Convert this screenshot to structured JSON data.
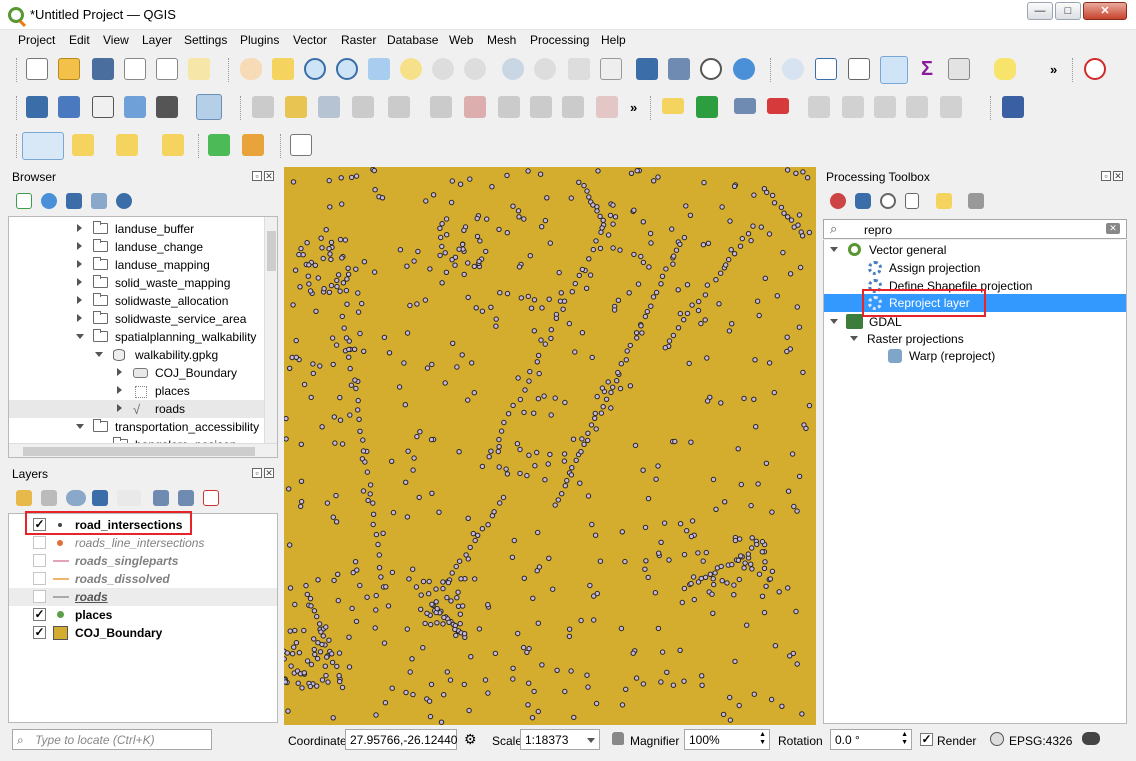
{
  "window": {
    "title": "*Untitled Project — QGIS",
    "btn_min": "—",
    "btn_max": "□",
    "btn_close": "✕"
  },
  "menu": [
    "Project",
    "Edit",
    "View",
    "Layer",
    "Settings",
    "Plugins",
    "Vector",
    "Raster",
    "Database",
    "Web",
    "Mesh",
    "Processing",
    "Help"
  ],
  "toolbar": {
    "more": "»"
  },
  "browser": {
    "title": "Browser",
    "items": [
      {
        "label": "landuse_buffer",
        "level": 1,
        "expanded": false,
        "icon": "folder-icon"
      },
      {
        "label": "landuse_change",
        "level": 1,
        "expanded": false,
        "icon": "folder-icon"
      },
      {
        "label": "landuse_mapping",
        "level": 1,
        "expanded": false,
        "icon": "folder-icon"
      },
      {
        "label": "solid_waste_mapping",
        "level": 1,
        "expanded": false,
        "icon": "folder-icon"
      },
      {
        "label": "solidwaste_allocation",
        "level": 1,
        "expanded": false,
        "icon": "folder-icon"
      },
      {
        "label": "solidwaste_service_area",
        "level": 1,
        "expanded": false,
        "icon": "folder-icon"
      },
      {
        "label": "spatialplanning_walkability",
        "level": 1,
        "expanded": true,
        "icon": "folder-icon"
      },
      {
        "label": "walkability.gpkg",
        "level": 2,
        "expanded": true,
        "icon": "database-icon"
      },
      {
        "label": "COJ_Boundary",
        "level": 3,
        "expanded": false,
        "icon": "polygon-layer-icon"
      },
      {
        "label": "places",
        "level": 3,
        "expanded": false,
        "icon": "point-layer-icon"
      },
      {
        "label": "roads",
        "level": 3,
        "expanded": false,
        "icon": "line-layer-icon"
      },
      {
        "label": "transportation_accessibility",
        "level": 1,
        "expanded": true,
        "icon": "folder-icon"
      },
      {
        "label": "bangalore_posison",
        "level": 2,
        "expanded": false,
        "icon": "folder-icon"
      }
    ]
  },
  "layers": {
    "title": "Layers",
    "items": [
      {
        "label": "road_intersections",
        "checked": true,
        "style": "bold",
        "symbol": "point-black"
      },
      {
        "label": "roads_line_intersections",
        "checked": false,
        "style": "italic",
        "symbol": "point-orange"
      },
      {
        "label": "roads_singleparts",
        "checked": false,
        "style": "italic",
        "symbol": "line-pink"
      },
      {
        "label": "roads_dissolved",
        "checked": false,
        "style": "italic",
        "symbol": "line-orange"
      },
      {
        "label": "roads",
        "checked": false,
        "style": "bold-italic-underline",
        "symbol": "line-gray"
      },
      {
        "label": "places",
        "checked": true,
        "style": "bold",
        "symbol": "point-green"
      },
      {
        "label": "COJ_Boundary",
        "checked": true,
        "style": "bold",
        "symbol": "polygon-gold"
      }
    ]
  },
  "processing": {
    "title": "Processing Toolbox",
    "search_value": "repro",
    "tree": [
      {
        "label": "Vector general",
        "level": 0,
        "expanded": true,
        "icon": "qgis-icon"
      },
      {
        "label": "Assign projection",
        "level": 1,
        "icon": "gear-icon"
      },
      {
        "label": "Define Shapefile projection",
        "level": 1,
        "icon": "gear-icon"
      },
      {
        "label": "Reproject layer",
        "level": 1,
        "icon": "gear-icon",
        "selected": true
      },
      {
        "label": "GDAL",
        "level": 0,
        "expanded": true,
        "icon": "gdal-icon"
      },
      {
        "label": "Raster projections",
        "level": 1,
        "expanded": true,
        "icon": ""
      },
      {
        "label": "Warp (reproject)",
        "level": 2,
        "icon": "gdal-tool-icon"
      }
    ]
  },
  "status": {
    "locate_placeholder": "Type to locate (Ctrl+K)",
    "coordinate_label": "Coordinate",
    "coordinate_value": "27.95766,-26.12440",
    "scale_label": "Scale",
    "scale_value": "1:18373",
    "magnifier_label": "Magnifier",
    "magnifier_value": "100%",
    "rotation_label": "Rotation",
    "rotation_value": "0.0 °",
    "render_label": "Render",
    "render_checked": true,
    "crs_label": "EPSG:4326"
  },
  "colors": {
    "map_fill": "#d4ac2e",
    "point_fill": "#c9b6d8",
    "point_stroke": "#252525",
    "selection": "#3399ff",
    "highlight_box": "#e8232a"
  }
}
